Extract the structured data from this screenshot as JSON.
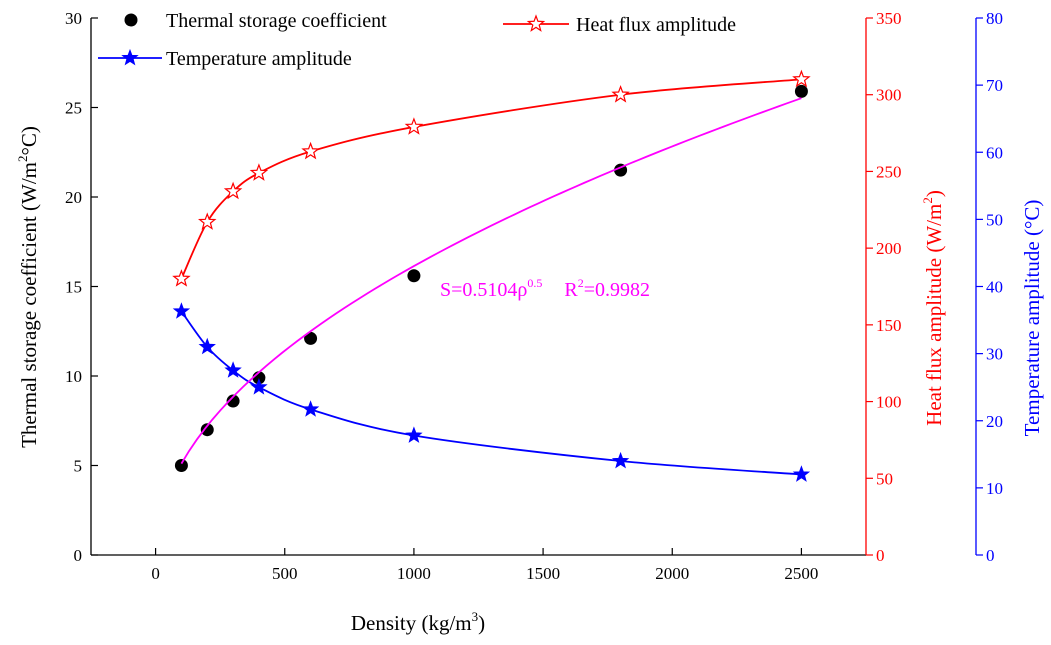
{
  "chart_data": {
    "type": "line",
    "xlabel": {
      "main": "Density (kg/m",
      "sup": "3",
      "tail": ")"
    },
    "x_ticks": [
      0,
      500,
      1000,
      1500,
      2000,
      2500
    ],
    "xlim": [
      -250,
      2750
    ],
    "axes": {
      "left": {
        "label": {
          "main": "Thermal storage coefficient (W/m",
          "sup": "2",
          "tail": "°C)"
        },
        "ylim": [
          0,
          30
        ],
        "ticks": [
          0,
          5,
          10,
          15,
          20,
          25,
          30
        ],
        "color": "#000000"
      },
      "right1": {
        "label": {
          "main": "Heat flux amplitude (W/m",
          "sup": "2",
          "tail": ")"
        },
        "ylim": [
          0,
          350
        ],
        "ticks": [
          0,
          50,
          100,
          150,
          200,
          250,
          300,
          350
        ],
        "color": "#ff0000"
      },
      "right2": {
        "label": {
          "main": "Temperature amplitude (°C)"
        },
        "ylim": [
          0,
          80
        ],
        "ticks": [
          0,
          10,
          20,
          30,
          40,
          50,
          60,
          70,
          80
        ],
        "color": "#0000ff"
      }
    },
    "series": [
      {
        "name": "Thermal storage coefficient",
        "axis": "left",
        "marker": "circle",
        "line": false,
        "color": "#000000",
        "x": [
          100,
          200,
          300,
          400,
          600,
          1000,
          1800,
          2500
        ],
        "y": [
          5.0,
          7.0,
          8.6,
          9.9,
          12.1,
          15.6,
          21.5,
          25.9
        ]
      },
      {
        "name": "Heat flux amplitude",
        "axis": "right1",
        "marker": "open-star",
        "line": true,
        "color": "#ff0000",
        "x": [
          100,
          200,
          300,
          400,
          600,
          1000,
          1800,
          2500
        ],
        "y": [
          180,
          217,
          237,
          249,
          263,
          279,
          300,
          310
        ]
      },
      {
        "name": "Temperature amplitude",
        "axis": "right2",
        "marker": "filled-star",
        "line": true,
        "color": "#0000ff",
        "x": [
          100,
          200,
          300,
          400,
          600,
          1000,
          1800,
          2500
        ],
        "y": [
          36.3,
          31.0,
          27.5,
          25.0,
          21.7,
          17.8,
          14.0,
          12.0
        ]
      }
    ],
    "fit": {
      "axis": "left",
      "color": "#ff00ff",
      "coef": 0.5104,
      "exponent": 0.5,
      "x_start": 100,
      "x_end": 2500,
      "label_main": "S=0.5104ρ",
      "label_sup": "0.5",
      "r2_main": "R",
      "r2_sup": "2",
      "r2_tail": "=0.9982"
    },
    "legend": {
      "placement": "top"
    }
  }
}
